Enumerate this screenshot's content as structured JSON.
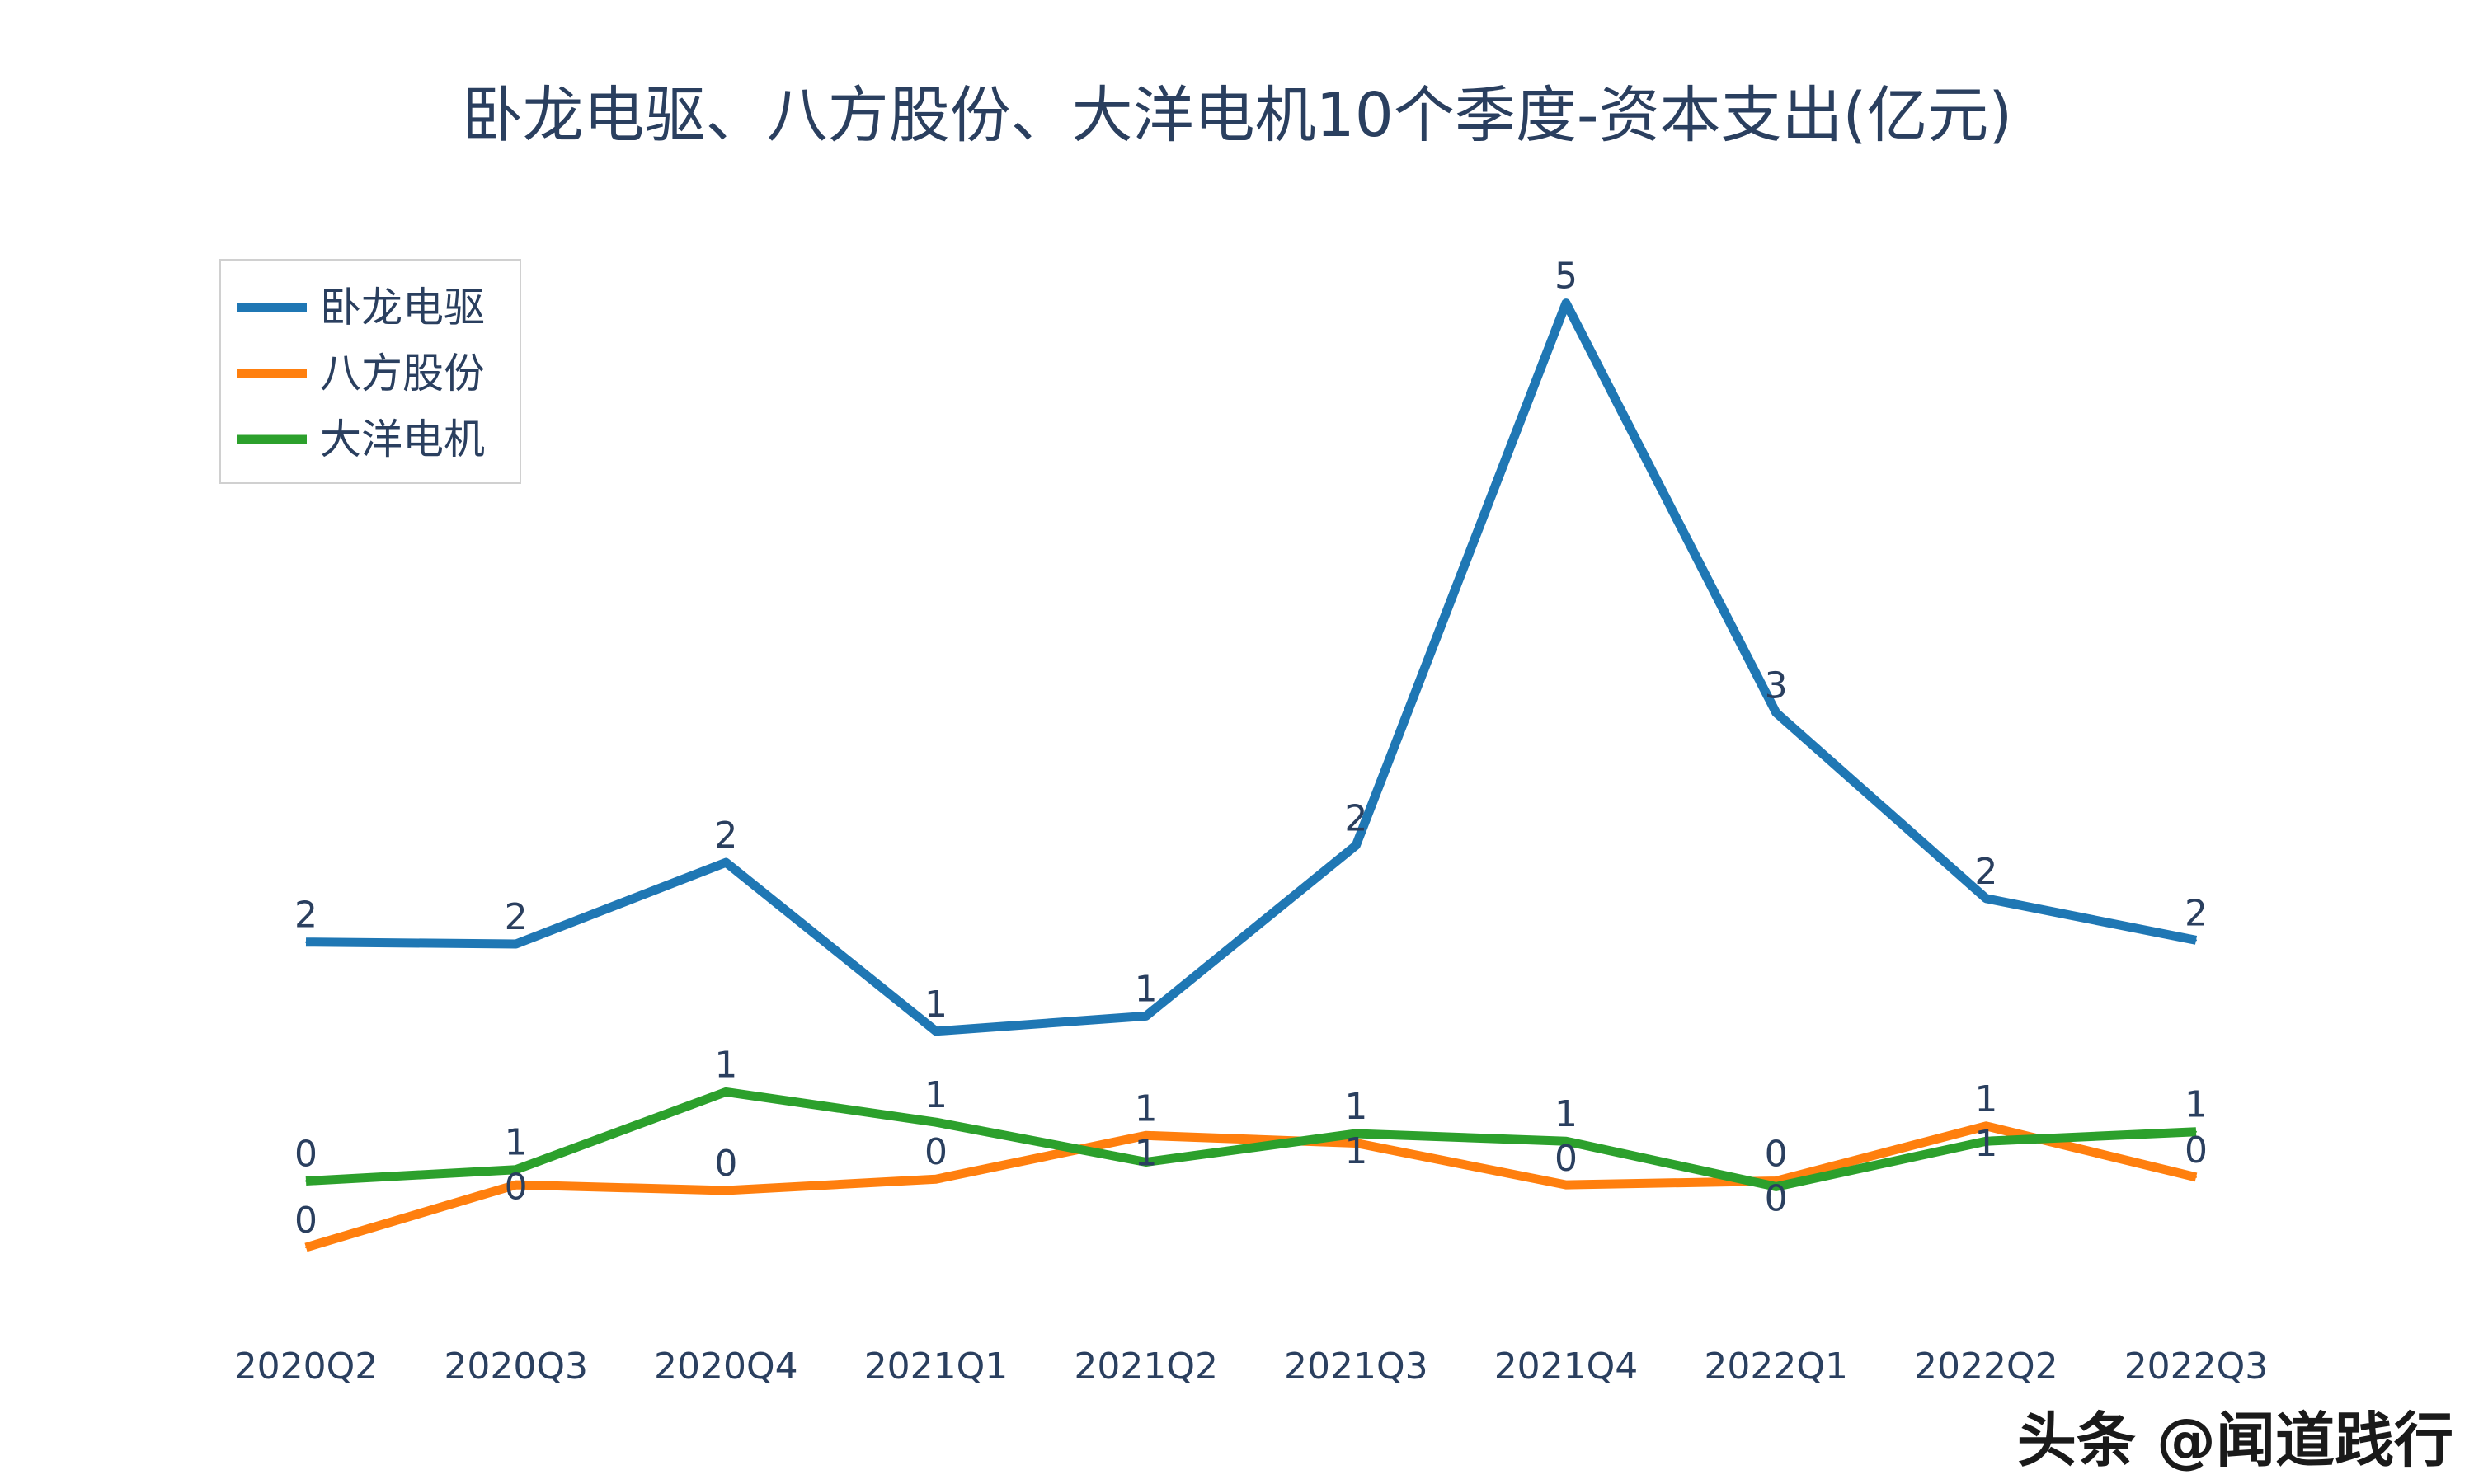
{
  "watermark": "头条 @闻道践行",
  "chart_data": {
    "type": "line",
    "title": "卧龙电驱、八方股份、大洋电机10个季度-资本支出(亿元)",
    "xlabel": "",
    "ylabel": "",
    "categories": [
      "2020Q2",
      "2020Q3",
      "2020Q4",
      "2021Q1",
      "2021Q2",
      "2021Q3",
      "2021Q4",
      "2022Q1",
      "2022Q2",
      "2022Q3"
    ],
    "y_axis_visible": false,
    "grid": false,
    "legend_position": "top-left",
    "data_label_format": "integer",
    "series": [
      {
        "name": "卧龙电驱",
        "color": "#1f77b4",
        "values": [
          1.71,
          1.7,
          2.13,
          1.24,
          1.32,
          2.22,
          5.08,
          2.92,
          1.94,
          1.72
        ]
      },
      {
        "name": "八方股份",
        "color": "#ff7f0e",
        "values": [
          0.1,
          0.43,
          0.4,
          0.46,
          0.69,
          0.65,
          0.43,
          0.45,
          0.74,
          0.47
        ]
      },
      {
        "name": "大洋电机",
        "color": "#2ca02c",
        "values": [
          0.45,
          0.51,
          0.92,
          0.76,
          0.55,
          0.7,
          0.66,
          0.42,
          0.66,
          0.71
        ]
      }
    ]
  }
}
